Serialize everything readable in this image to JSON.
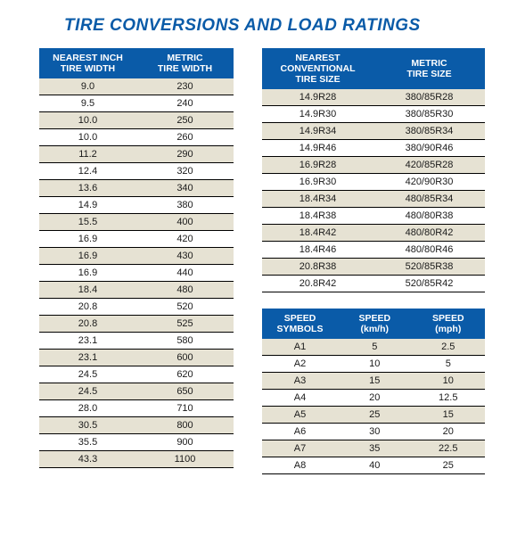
{
  "title": "TIRE CONVERSIONS AND LOAD RATINGS",
  "colors": {
    "title": "#0a5ba8",
    "header_bg": "#0a5ba8",
    "header_text": "#ffffff",
    "row_alt_bg": "#e6e2d3",
    "row_bg": "#ffffff",
    "row_border": "#000000",
    "body_text": "#1a1a1a"
  },
  "typography": {
    "title_fontsize": 19,
    "header_fontsize": 10.5,
    "cell_fontsize": 11
  },
  "width_table": {
    "type": "table",
    "columns": [
      "NEAREST INCH\nTIRE WIDTH",
      "METRIC\nTIRE WIDTH"
    ],
    "col_widths_pct": [
      50,
      50
    ],
    "rows": [
      [
        "9.0",
        "230"
      ],
      [
        "9.5",
        "240"
      ],
      [
        "10.0",
        "250"
      ],
      [
        "10.0",
        "260"
      ],
      [
        "11.2",
        "290"
      ],
      [
        "12.4",
        "320"
      ],
      [
        "13.6",
        "340"
      ],
      [
        "14.9",
        "380"
      ],
      [
        "15.5",
        "400"
      ],
      [
        "16.9",
        "420"
      ],
      [
        "16.9",
        "430"
      ],
      [
        "16.9",
        "440"
      ],
      [
        "18.4",
        "480"
      ],
      [
        "20.8",
        "520"
      ],
      [
        "20.8",
        "525"
      ],
      [
        "23.1",
        "580"
      ],
      [
        "23.1",
        "600"
      ],
      [
        "24.5",
        "620"
      ],
      [
        "24.5",
        "650"
      ],
      [
        "28.0",
        "710"
      ],
      [
        "30.5",
        "800"
      ],
      [
        "35.5",
        "900"
      ],
      [
        "43.3",
        "1100"
      ]
    ]
  },
  "size_table": {
    "type": "table",
    "columns": [
      "NEAREST\nCONVENTIONAL\nTIRE SIZE",
      "METRIC\nTIRE SIZE"
    ],
    "col_widths_pct": [
      50,
      50
    ],
    "rows": [
      [
        "14.9R28",
        "380/85R28"
      ],
      [
        "14.9R30",
        "380/85R30"
      ],
      [
        "14.9R34",
        "380/85R34"
      ],
      [
        "14.9R46",
        "380/90R46"
      ],
      [
        "16.9R28",
        "420/85R28"
      ],
      [
        "16.9R30",
        "420/90R30"
      ],
      [
        "18.4R34",
        "480/85R34"
      ],
      [
        "18.4R38",
        "480/80R38"
      ],
      [
        "18.4R42",
        "480/80R42"
      ],
      [
        "18.4R46",
        "480/80R46"
      ],
      [
        "20.8R38",
        "520/85R38"
      ],
      [
        "20.8R42",
        "520/85R42"
      ]
    ]
  },
  "speed_table": {
    "type": "table",
    "columns": [
      "SPEED\nSYMBOLS",
      "SPEED\n(km/h)",
      "SPEED\n(mph)"
    ],
    "col_widths_pct": [
      34,
      33,
      33
    ],
    "rows": [
      [
        "A1",
        "5",
        "2.5"
      ],
      [
        "A2",
        "10",
        "5"
      ],
      [
        "A3",
        "15",
        "10"
      ],
      [
        "A4",
        "20",
        "12.5"
      ],
      [
        "A5",
        "25",
        "15"
      ],
      [
        "A6",
        "30",
        "20"
      ],
      [
        "A7",
        "35",
        "22.5"
      ],
      [
        "A8",
        "40",
        "25"
      ]
    ]
  }
}
